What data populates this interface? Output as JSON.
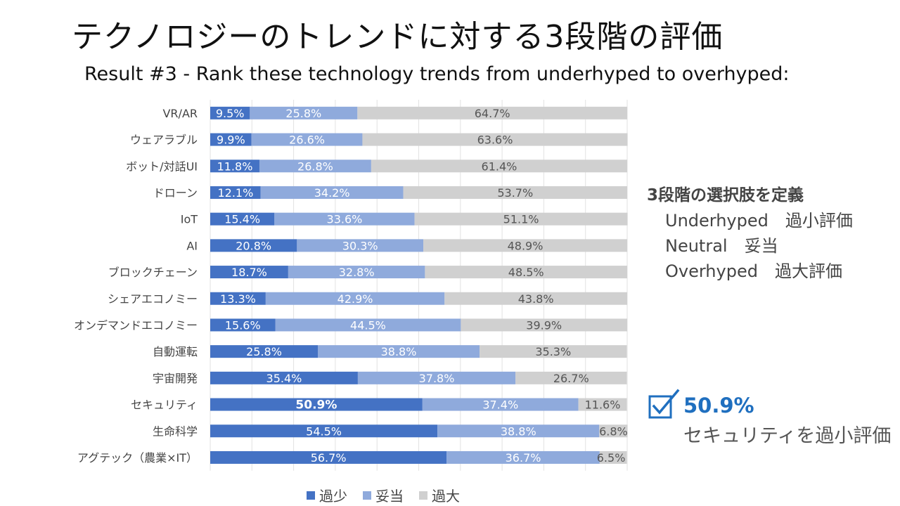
{
  "title": "テクノロジーのトレンドに対する3段階の評価",
  "subtitle": "Result #3 - Rank these technology trends from underhyped to overhyped:",
  "definitions": {
    "heading": "3段階の選択肢を定義",
    "items": [
      "Underhyped　過小評価",
      "Neutral　妥当",
      "Overhyped　過大評価"
    ]
  },
  "highlight": {
    "value": "50.9%",
    "text": "セキュリティを過小評価"
  },
  "colors": {
    "underhyped": "#4472c4",
    "neutral": "#8faadc",
    "overhyped": "#d0d0d0",
    "accent": "#1f6fbf"
  },
  "chart_data": {
    "type": "bar",
    "orientation": "horizontal",
    "stacked": "100%",
    "categories": [
      "VR/AR",
      "ウェアラブル",
      "ボット/対話UI",
      "ドローン",
      "IoT",
      "AI",
      "ブロックチェーン",
      "シェアエコノミー",
      "オンデマンドエコノミー",
      "自動運転",
      "宇宙開発",
      "セキュリティ",
      "生命科学",
      "アグテック（農業×IT）"
    ],
    "series": [
      {
        "name": "過少",
        "values": [
          9.5,
          9.9,
          11.8,
          12.1,
          15.4,
          20.8,
          18.7,
          13.3,
          15.6,
          25.8,
          35.4,
          50.9,
          54.5,
          56.7
        ]
      },
      {
        "name": "妥当",
        "values": [
          25.8,
          26.6,
          26.8,
          34.2,
          33.6,
          30.3,
          32.8,
          42.9,
          44.5,
          38.8,
          37.8,
          37.4,
          38.8,
          36.7
        ]
      },
      {
        "name": "過大",
        "values": [
          64.7,
          63.6,
          61.4,
          53.7,
          51.1,
          48.9,
          48.5,
          43.8,
          39.9,
          35.3,
          26.7,
          11.6,
          6.8,
          6.5
        ]
      }
    ],
    "xlim": [
      0,
      100
    ],
    "grid": true,
    "legend": "bottom",
    "emphasized": {
      "category": "セキュリティ",
      "series": "過少"
    }
  }
}
